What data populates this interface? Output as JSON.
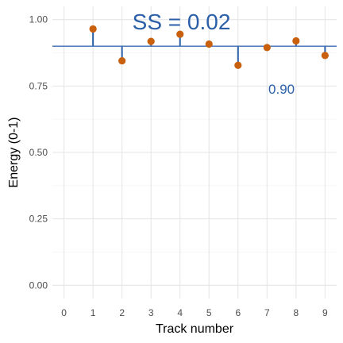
{
  "chart_data": {
    "type": "scatter",
    "title": "",
    "xlabel": "Track number",
    "ylabel": "Energy (0-1)",
    "x_ticks": [
      "0",
      "1",
      "2",
      "3",
      "4",
      "5",
      "6",
      "7",
      "8",
      "9"
    ],
    "y_ticks": [
      "0.00",
      "0.25",
      "0.50",
      "0.75",
      "1.00"
    ],
    "xlim": [
      -0.4,
      9.4
    ],
    "ylim": [
      -0.05,
      1.05
    ],
    "grid": true,
    "reference_line": {
      "y": 0.9,
      "label": "0.90",
      "color": "#3a6bb3"
    },
    "annotation": {
      "text": "SS = 0.02",
      "color": "#2a5fa8"
    },
    "point_color": "#c8600e",
    "segment_color": "#2a5fa8",
    "points": [
      {
        "x": 1,
        "y": 0.965
      },
      {
        "x": 2,
        "y": 0.845
      },
      {
        "x": 3,
        "y": 0.918
      },
      {
        "x": 4,
        "y": 0.945
      },
      {
        "x": 5,
        "y": 0.908
      },
      {
        "x": 6,
        "y": 0.828
      },
      {
        "x": 7,
        "y": 0.895
      },
      {
        "x": 8,
        "y": 0.92
      },
      {
        "x": 9,
        "y": 0.865
      }
    ]
  }
}
